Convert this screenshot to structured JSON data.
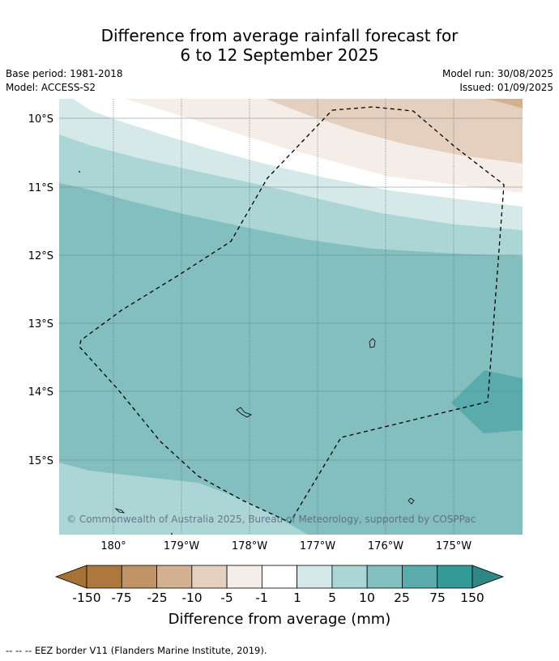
{
  "title": {
    "line1": "Difference from average rainfall forecast for",
    "line2": "6 to 12 September 2025"
  },
  "header_left": {
    "base_period": "Base period: 1981-2018",
    "model": "Model: ACCESS-S2"
  },
  "header_right": {
    "model_run": "Model run: 30/08/2025",
    "issued": "Issued: 01/09/2025"
  },
  "map": {
    "lat_labels": [
      "10°S",
      "11°S",
      "12°S",
      "13°S",
      "14°S",
      "15°S"
    ],
    "lon_labels": [
      "180°",
      "179°W",
      "178°W",
      "177°W",
      "176°W",
      "175°W"
    ],
    "copyright": "© Commonwealth of Australia 2025, Bureau of Meteorology, supported by COSPPac"
  },
  "colorbar": {
    "tick_labels": [
      "-150",
      "-75",
      "-25",
      "-10",
      "-5",
      "-1",
      "1",
      "5",
      "10",
      "25",
      "75",
      "150"
    ],
    "colors": [
      "#a87236",
      "#ad773e",
      "#c19265",
      "#d3b092",
      "#e5d0bf",
      "#f5ede8",
      "#ffffff",
      "#d5e9e9",
      "#acd5d5",
      "#83bfbf",
      "#5aabab",
      "#339a98",
      "#2f8685"
    ],
    "label": "Difference from average (mm)"
  },
  "footer": {
    "legend_text": "--  --  -- EEZ border V11 (Flanders Marine Institute, 2019)."
  }
}
